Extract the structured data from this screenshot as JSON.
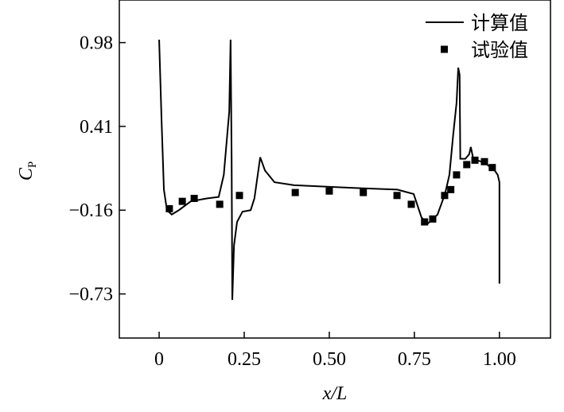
{
  "chart_data": {
    "type": "line",
    "xlabel": "x/L",
    "ylabel": "C",
    "ylabel_sub": "P",
    "xlim": [
      -0.117,
      1.15
    ],
    "ylim": [
      -1.03,
      1.27
    ],
    "xticks": [
      0,
      0.25,
      {
        "value": 0.5,
        "label": "0.50"
      },
      0.75,
      {
        "value": 1,
        "label": "1.00"
      }
    ],
    "yticks": [
      0.98,
      0.41,
      {
        "value": -0.16,
        "label": "−0.16"
      },
      {
        "value": -0.73,
        "label": "−0.73"
      }
    ],
    "legend": "upper right",
    "series": [
      {
        "name": "计算值",
        "type": "line",
        "color": "#000000",
        "x": [
          0,
          0.007,
          0.014,
          0.023,
          0.037,
          0.058,
          0.093,
          0.14,
          0.175,
          0.19,
          0.206,
          0.21,
          0.213,
          0.215,
          0.22,
          0.229,
          0.245,
          0.269,
          0.28,
          0.297,
          0.311,
          0.339,
          0.397,
          0.584,
          0.7,
          0.748,
          0.771,
          0.79,
          0.818,
          0.84,
          0.853,
          0.864,
          0.874,
          0.879,
          0.883,
          0.885,
          0.9,
          0.911,
          0.916,
          0.923,
          0.958,
          0.986,
          0.995,
          1.0,
          1.0
        ],
        "values": [
          1.0,
          0.46,
          -0.02,
          -0.16,
          -0.19,
          -0.16,
          -0.1,
          -0.08,
          -0.07,
          0.08,
          0.51,
          1.0,
          0.19,
          -0.77,
          -0.4,
          -0.24,
          -0.17,
          -0.16,
          -0.08,
          0.2,
          0.11,
          0.03,
          0.01,
          -0.01,
          -0.02,
          -0.05,
          -0.21,
          -0.25,
          -0.19,
          -0.05,
          0.08,
          0.35,
          0.57,
          0.81,
          0.76,
          0.19,
          0.19,
          0.22,
          0.27,
          0.19,
          0.16,
          0.11,
          0.08,
          0.03,
          -0.66
        ]
      },
      {
        "name": "试验值",
        "type": "scatter",
        "color": "#000000",
        "x": [
          0.03,
          0.068,
          0.103,
          0.178,
          0.236,
          0.4,
          0.5,
          0.6,
          0.699,
          0.741,
          0.78,
          0.804,
          0.839,
          0.857,
          0.874,
          0.904,
          0.928,
          0.956,
          0.979
        ],
        "values": [
          -0.15,
          -0.1,
          -0.08,
          -0.12,
          -0.06,
          -0.04,
          -0.03,
          -0.04,
          -0.06,
          -0.12,
          -0.24,
          -0.22,
          -0.06,
          -0.02,
          0.08,
          0.15,
          0.18,
          0.17,
          0.13
        ]
      }
    ]
  }
}
